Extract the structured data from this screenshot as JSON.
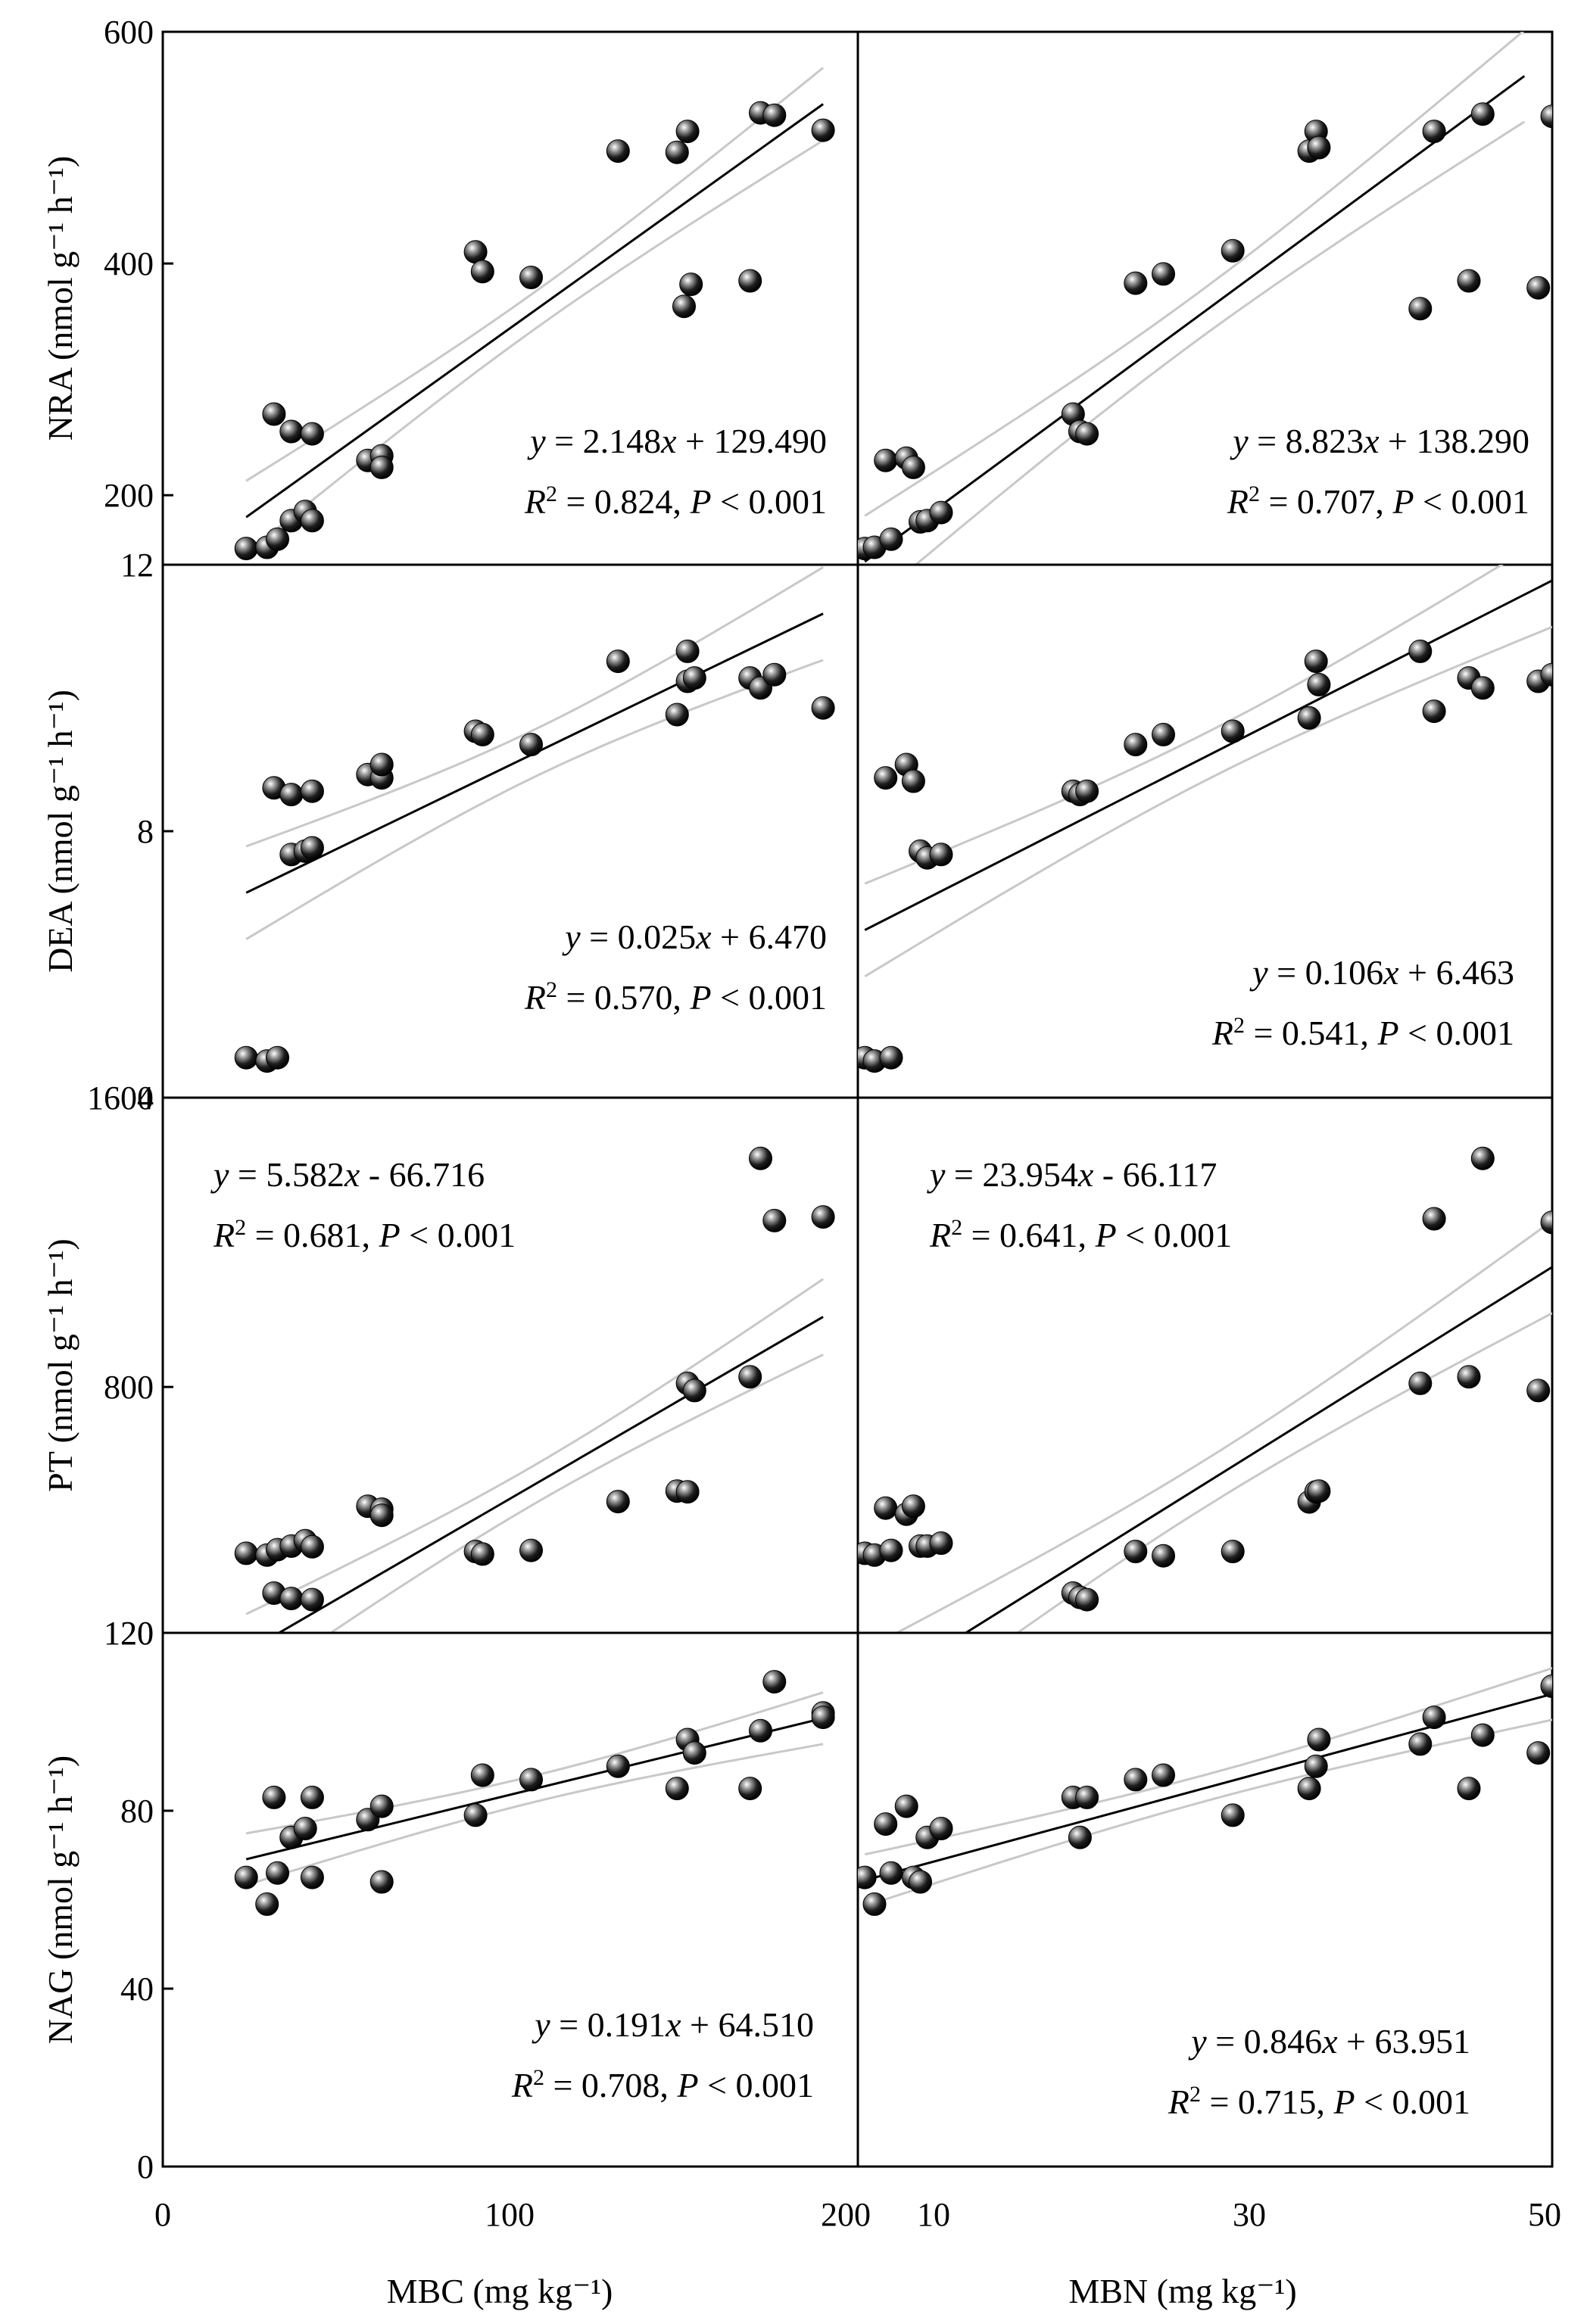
{
  "figure": {
    "x_titles": {
      "left": "MBC (mg kg⁻¹)",
      "right": "MBN (mg kg⁻¹)"
    },
    "x_ticks_left": [
      "0",
      "100",
      "200"
    ],
    "x_ticks_right": [
      "10",
      "30",
      "50"
    ]
  },
  "chart_data": [
    {
      "type": "scatter",
      "row": "NRA",
      "col": "MBC",
      "ylabel": "NRA (nmol g⁻¹ h⁻¹)",
      "xlim": [
        0,
        200
      ],
      "ylim": [
        140,
        600
      ],
      "yticks": [
        "600",
        "400",
        "200"
      ],
      "ytick_values": [
        600,
        400,
        200
      ],
      "equation": "y = 2.148x + 129.490",
      "stats": "R2 = 0.824, P < 0.001",
      "fit": {
        "slope": 2.148,
        "intercept": 129.49,
        "x_range": [
          24,
          190
        ],
        "ci": 27
      },
      "points": [
        [
          24,
          154
        ],
        [
          30,
          155
        ],
        [
          33,
          162
        ],
        [
          32,
          270
        ],
        [
          37,
          255
        ],
        [
          43,
          253
        ],
        [
          37,
          178
        ],
        [
          41,
          186
        ],
        [
          43,
          178
        ],
        [
          59,
          230
        ],
        [
          63,
          234
        ],
        [
          63,
          224
        ],
        [
          90,
          410
        ],
        [
          92,
          393
        ],
        [
          106,
          388
        ],
        [
          131,
          497
        ],
        [
          148,
          496
        ],
        [
          151,
          514
        ],
        [
          150,
          363
        ],
        [
          152,
          382
        ],
        [
          169,
          385
        ],
        [
          172,
          530
        ],
        [
          176,
          528
        ],
        [
          190,
          515
        ]
      ]
    },
    {
      "type": "scatter",
      "row": "NRA",
      "col": "MBN",
      "ylabel": "",
      "xlim": [
        0,
        50
      ],
      "ylim": [
        140,
        600
      ],
      "yticks": [],
      "ytick_values": [],
      "equation": "y = 8.823x + 138.290",
      "stats": "R2 = 0.707, P < 0.001",
      "fit": {
        "slope": 8.823,
        "intercept": 138.29,
        "x_range": [
          0.5,
          48
        ],
        "ci": 34
      },
      "points": [
        [
          0.5,
          154
        ],
        [
          1.2,
          155
        ],
        [
          2.4,
          162
        ],
        [
          2.0,
          230
        ],
        [
          3.5,
          232
        ],
        [
          4,
          224
        ],
        [
          4.5,
          177
        ],
        [
          5,
          178
        ],
        [
          6,
          185
        ],
        [
          15.5,
          270
        ],
        [
          16,
          255
        ],
        [
          16.5,
          253
        ],
        [
          20,
          383
        ],
        [
          22,
          391
        ],
        [
          27,
          411
        ],
        [
          32.5,
          497
        ],
        [
          33,
          514
        ],
        [
          33.2,
          500
        ],
        [
          40.5,
          361
        ],
        [
          41.5,
          514
        ],
        [
          44,
          385
        ],
        [
          45,
          529
        ],
        [
          49,
          379
        ],
        [
          50,
          527
        ]
      ]
    },
    {
      "type": "scatter",
      "row": "DEA",
      "col": "MBC",
      "ylabel": "DEA (nmol g⁻¹ h⁻¹)",
      "xlim": [
        0,
        200
      ],
      "ylim": [
        4,
        12
      ],
      "yticks": [
        "12",
        "8",
        "4"
      ],
      "ytick_values": [
        12,
        8,
        4
      ],
      "equation": "y = 0.025x + 6.470",
      "stats": "R2 = 0.570, P < 0.001",
      "fit": {
        "slope": 0.02524,
        "intercept": 6.47,
        "x_range": [
          24,
          190
        ],
        "ci": 0.6
      },
      "points": [
        [
          24,
          4.6
        ],
        [
          30,
          4.55
        ],
        [
          33,
          4.6
        ],
        [
          32,
          8.65
        ],
        [
          37,
          8.55
        ],
        [
          43,
          8.6
        ],
        [
          37,
          7.65
        ],
        [
          41,
          7.7
        ],
        [
          43,
          7.75
        ],
        [
          59,
          8.85
        ],
        [
          63,
          8.8
        ],
        [
          63,
          9.0
        ],
        [
          90,
          9.5
        ],
        [
          92,
          9.45
        ],
        [
          106,
          9.3
        ],
        [
          131,
          10.55
        ],
        [
          148,
          9.75
        ],
        [
          151,
          10.7
        ],
        [
          151,
          10.25
        ],
        [
          153,
          10.3
        ],
        [
          169,
          10.3
        ],
        [
          172,
          10.15
        ],
        [
          176,
          10.35
        ],
        [
          190,
          9.85
        ]
      ]
    },
    {
      "type": "scatter",
      "row": "DEA",
      "col": "MBN",
      "ylabel": "",
      "xlim": [
        0,
        50
      ],
      "ylim": [
        4,
        12
      ],
      "yticks": [],
      "ytick_values": [],
      "equation": "y = 0.106x + 6.463",
      "stats": "R2 = 0.541, P < 0.001",
      "fit": {
        "slope": 0.106,
        "intercept": 6.463,
        "x_range": [
          0.5,
          50
        ],
        "ci": 0.6
      },
      "points": [
        [
          0.5,
          4.6
        ],
        [
          1.2,
          4.55
        ],
        [
          2.4,
          4.6
        ],
        [
          2.0,
          8.8
        ],
        [
          3.5,
          9.0
        ],
        [
          4,
          8.75
        ],
        [
          4.5,
          7.7
        ],
        [
          5,
          7.6
        ],
        [
          6,
          7.65
        ],
        [
          15.5,
          8.6
        ],
        [
          16,
          8.55
        ],
        [
          16.5,
          8.6
        ],
        [
          20,
          9.3
        ],
        [
          22,
          9.45
        ],
        [
          27,
          9.5
        ],
        [
          32.5,
          9.7
        ],
        [
          33,
          10.55
        ],
        [
          33.2,
          10.2
        ],
        [
          40.5,
          10.7
        ],
        [
          41.5,
          9.8
        ],
        [
          44,
          10.3
        ],
        [
          45,
          10.15
        ],
        [
          49,
          10.25
        ],
        [
          50,
          10.35
        ]
      ]
    },
    {
      "type": "scatter",
      "row": "PT",
      "col": "MBC",
      "ylabel": "PT (nmol g⁻¹ h⁻¹)",
      "xlim": [
        0,
        200
      ],
      "ylim": [
        120,
        1600
      ],
      "yticks": [
        "1600",
        "800",
        "120"
      ],
      "ytick_values": [
        1600,
        800,
        120
      ],
      "equation": "y = 5.582x - 66.716",
      "stats": "R2 = 0.681, P < 0.001",
      "fit": {
        "slope": 5.582,
        "intercept": -66.716,
        "x_range": [
          24,
          190
        ],
        "ci": 90
      },
      "points": [
        [
          24,
          340
        ],
        [
          30,
          335
        ],
        [
          33,
          350
        ],
        [
          32,
          230
        ],
        [
          37,
          215
        ],
        [
          43,
          212
        ],
        [
          37,
          360
        ],
        [
          41,
          375
        ],
        [
          43,
          358
        ],
        [
          59,
          470
        ],
        [
          63,
          462
        ],
        [
          63,
          445
        ],
        [
          90,
          345
        ],
        [
          92,
          338
        ],
        [
          106,
          348
        ],
        [
          131,
          483
        ],
        [
          148,
          512
        ],
        [
          151,
          510
        ],
        [
          151,
          810
        ],
        [
          153,
          790
        ],
        [
          169,
          828
        ],
        [
          172,
          1432
        ],
        [
          176,
          1260
        ],
        [
          190,
          1270
        ]
      ]
    },
    {
      "type": "scatter",
      "row": "PT",
      "col": "MBN",
      "ylabel": "",
      "xlim": [
        0,
        50
      ],
      "ylim": [
        120,
        1600
      ],
      "yticks": [],
      "ytick_values": [],
      "equation": "y = 23.954x - 66.117",
      "stats": "R2 = 0.641, P < 0.001",
      "fit": {
        "slope": 23.954,
        "intercept": -66.117,
        "x_range": [
          0.5,
          50
        ],
        "ci": 110
      },
      "points": [
        [
          0.5,
          340
        ],
        [
          1.2,
          335
        ],
        [
          2.4,
          348
        ],
        [
          2.0,
          465
        ],
        [
          3.5,
          448
        ],
        [
          4,
          470
        ],
        [
          4.5,
          360
        ],
        [
          5,
          360
        ],
        [
          6,
          368
        ],
        [
          15.5,
          230
        ],
        [
          16,
          218
        ],
        [
          16.5,
          212
        ],
        [
          20,
          345
        ],
        [
          22,
          333
        ],
        [
          27,
          345
        ],
        [
          32.5,
          482
        ],
        [
          33,
          510
        ],
        [
          33.2,
          512
        ],
        [
          40.5,
          810
        ],
        [
          41.5,
          1265
        ],
        [
          44,
          828
        ],
        [
          45,
          1432
        ],
        [
          49,
          790
        ],
        [
          50,
          1255
        ]
      ]
    },
    {
      "type": "scatter",
      "row": "NAG",
      "col": "MBC",
      "ylabel": "NAG (nmol g⁻¹ h⁻¹)",
      "xlim": [
        0,
        200
      ],
      "ylim": [
        0,
        120
      ],
      "yticks": [
        "120",
        "80",
        "40",
        "0"
      ],
      "ytick_values": [
        120,
        80,
        40,
        0
      ],
      "equation": "y = 0.191x + 64.510",
      "stats": "R2 = 0.708, P < 0.001",
      "fit": {
        "slope": 0.191,
        "intercept": 64.51,
        "x_range": [
          24,
          190
        ],
        "ci": 5
      },
      "points": [
        [
          24,
          65
        ],
        [
          30,
          59
        ],
        [
          33,
          66
        ],
        [
          32,
          83
        ],
        [
          37,
          74
        ],
        [
          43,
          83
        ],
        [
          37,
          74
        ],
        [
          41,
          76
        ],
        [
          43,
          65
        ],
        [
          59,
          78
        ],
        [
          63,
          81
        ],
        [
          63,
          64
        ],
        [
          90,
          79
        ],
        [
          92,
          88
        ],
        [
          106,
          87
        ],
        [
          131,
          90
        ],
        [
          148,
          85
        ],
        [
          151,
          96
        ],
        [
          153,
          93
        ],
        [
          169,
          85
        ],
        [
          172,
          98
        ],
        [
          176,
          109
        ],
        [
          190,
          102
        ],
        [
          190,
          101
        ]
      ]
    },
    {
      "type": "scatter",
      "row": "NAG",
      "col": "MBN",
      "ylabel": "",
      "xlim": [
        0,
        50
      ],
      "ylim": [
        0,
        120
      ],
      "yticks": [],
      "ytick_values": [],
      "equation": "y = 0.846x + 63.951",
      "stats": "R2 = 0.715, P < 0.001",
      "fit": {
        "slope": 0.846,
        "intercept": 63.951,
        "x_range": [
          0.5,
          50
        ],
        "ci": 5
      },
      "points": [
        [
          0.5,
          65
        ],
        [
          1.2,
          59
        ],
        [
          2.4,
          66
        ],
        [
          2.0,
          77
        ],
        [
          3.5,
          81
        ],
        [
          4,
          65
        ],
        [
          4.5,
          64
        ],
        [
          5,
          74
        ],
        [
          6,
          76
        ],
        [
          15.5,
          83
        ],
        [
          16,
          74
        ],
        [
          16.5,
          83
        ],
        [
          20,
          87
        ],
        [
          22,
          88
        ],
        [
          27,
          79
        ],
        [
          32.5,
          85
        ],
        [
          33,
          90
        ],
        [
          33.2,
          96
        ],
        [
          40.5,
          95
        ],
        [
          41.5,
          101
        ],
        [
          44,
          85
        ],
        [
          45,
          97
        ],
        [
          49,
          93
        ],
        [
          50,
          108
        ]
      ]
    }
  ]
}
